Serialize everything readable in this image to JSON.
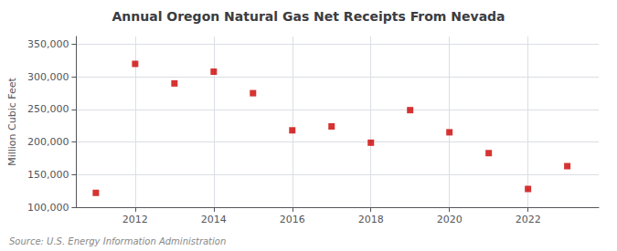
{
  "chart_data": {
    "type": "scatter",
    "title": "Annual Oregon Natural Gas Net Receipts From Nevada",
    "ylabel": "Million Cubic Feet",
    "annotations": [
      "Source: U.S. Energy Information Administration"
    ],
    "x": [
      2011,
      2012,
      2013,
      2014,
      2015,
      2016,
      2017,
      2018,
      2019,
      2020,
      2021,
      2022,
      2023
    ],
    "values": [
      122000,
      320000,
      290000,
      308000,
      275000,
      218000,
      224000,
      199000,
      249000,
      215000,
      183000,
      128000,
      163000
    ],
    "color": "#cc0000",
    "marker": "square",
    "xlim": [
      2010.5,
      2023.8
    ],
    "xticks": [
      2012,
      2014,
      2016,
      2018,
      2020,
      2022
    ],
    "ylim": [
      100000,
      362000
    ],
    "yticks": [
      {
        "value": 100000,
        "label": "100,000"
      },
      {
        "value": 150000,
        "label": "150,000"
      },
      {
        "value": 200000,
        "label": "200,000"
      },
      {
        "value": 250000,
        "label": "250,000"
      },
      {
        "value": 300000,
        "label": "300,000"
      },
      {
        "value": 350000,
        "label": "350,000"
      }
    ],
    "grid": true
  }
}
